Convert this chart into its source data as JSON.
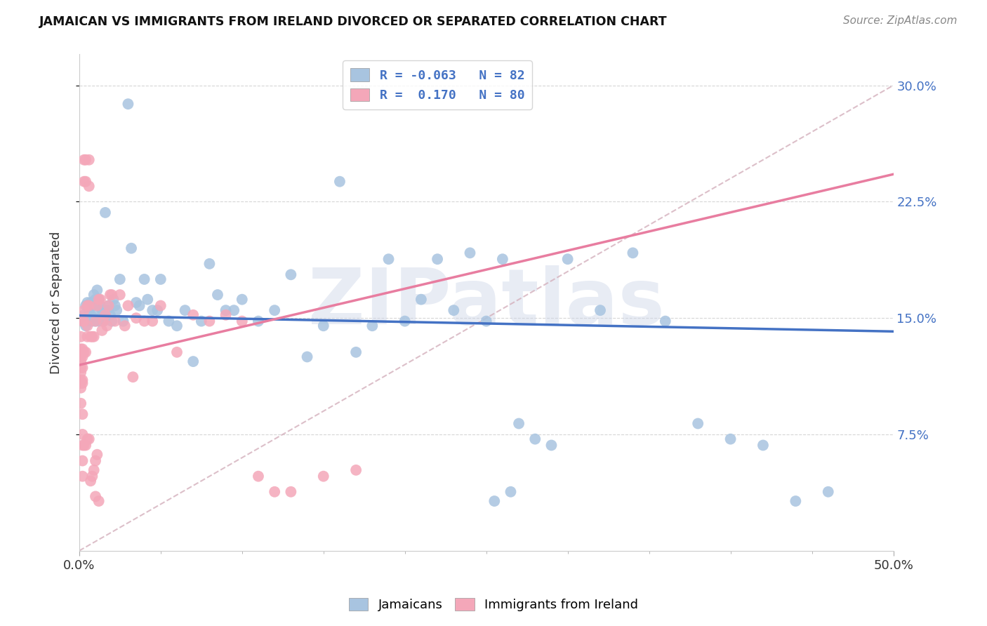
{
  "title": "JAMAICAN VS IMMIGRANTS FROM IRELAND DIVORCED OR SEPARATED CORRELATION CHART",
  "source": "Source: ZipAtlas.com",
  "ylabel": "Divorced or Separated",
  "ylabel_ticks": [
    "7.5%",
    "15.0%",
    "22.5%",
    "30.0%"
  ],
  "ylabel_vals": [
    0.075,
    0.15,
    0.225,
    0.3
  ],
  "xlim": [
    0.0,
    0.5
  ],
  "ylim": [
    0.0,
    0.32
  ],
  "jamaican_color": "#a8c4e0",
  "ireland_color": "#f4a7b9",
  "R_jamaican": -0.063,
  "N_jamaican": 82,
  "R_ireland": 0.17,
  "N_ireland": 80,
  "watermark": "ZIPatlas",
  "jamaican_points_x": [
    0.002,
    0.003,
    0.004,
    0.004,
    0.005,
    0.005,
    0.006,
    0.006,
    0.007,
    0.007,
    0.008,
    0.008,
    0.009,
    0.009,
    0.01,
    0.01,
    0.011,
    0.011,
    0.012,
    0.012,
    0.013,
    0.014,
    0.015,
    0.016,
    0.017,
    0.018,
    0.019,
    0.02,
    0.021,
    0.022,
    0.023,
    0.025,
    0.027,
    0.03,
    0.032,
    0.035,
    0.037,
    0.04,
    0.042,
    0.045,
    0.048,
    0.05,
    0.055,
    0.06,
    0.065,
    0.07,
    0.075,
    0.08,
    0.085,
    0.09,
    0.095,
    0.1,
    0.11,
    0.12,
    0.13,
    0.14,
    0.15,
    0.16,
    0.17,
    0.18,
    0.19,
    0.2,
    0.21,
    0.22,
    0.23,
    0.24,
    0.25,
    0.26,
    0.27,
    0.28,
    0.29,
    0.3,
    0.32,
    0.34,
    0.36,
    0.38,
    0.4,
    0.42,
    0.44,
    0.46,
    0.255,
    0.265
  ],
  "jamaican_points_y": [
    0.148,
    0.152,
    0.145,
    0.158,
    0.15,
    0.16,
    0.148,
    0.155,
    0.152,
    0.16,
    0.148,
    0.158,
    0.15,
    0.165,
    0.148,
    0.162,
    0.155,
    0.168,
    0.148,
    0.162,
    0.158,
    0.155,
    0.148,
    0.218,
    0.155,
    0.158,
    0.152,
    0.148,
    0.162,
    0.158,
    0.155,
    0.175,
    0.148,
    0.288,
    0.195,
    0.16,
    0.158,
    0.175,
    0.162,
    0.155,
    0.155,
    0.175,
    0.148,
    0.145,
    0.155,
    0.122,
    0.148,
    0.185,
    0.165,
    0.155,
    0.155,
    0.162,
    0.148,
    0.155,
    0.178,
    0.125,
    0.145,
    0.238,
    0.128,
    0.145,
    0.188,
    0.148,
    0.162,
    0.188,
    0.155,
    0.192,
    0.148,
    0.188,
    0.082,
    0.072,
    0.068,
    0.188,
    0.155,
    0.192,
    0.148,
    0.082,
    0.072,
    0.068,
    0.032,
    0.038,
    0.032,
    0.038
  ],
  "ireland_points_x": [
    0.001,
    0.001,
    0.001,
    0.001,
    0.001,
    0.001,
    0.001,
    0.001,
    0.001,
    0.001,
    0.001,
    0.002,
    0.002,
    0.002,
    0.002,
    0.002,
    0.002,
    0.002,
    0.002,
    0.002,
    0.002,
    0.002,
    0.003,
    0.003,
    0.003,
    0.003,
    0.003,
    0.003,
    0.004,
    0.004,
    0.004,
    0.004,
    0.005,
    0.005,
    0.005,
    0.005,
    0.006,
    0.006,
    0.006,
    0.006,
    0.007,
    0.007,
    0.008,
    0.008,
    0.009,
    0.009,
    0.01,
    0.01,
    0.011,
    0.011,
    0.012,
    0.013,
    0.014,
    0.015,
    0.016,
    0.017,
    0.018,
    0.019,
    0.02,
    0.022,
    0.025,
    0.028,
    0.03,
    0.033,
    0.035,
    0.04,
    0.045,
    0.05,
    0.06,
    0.07,
    0.08,
    0.09,
    0.1,
    0.11,
    0.12,
    0.13,
    0.15,
    0.17,
    0.01,
    0.012
  ],
  "ireland_points_y": [
    0.13,
    0.118,
    0.122,
    0.11,
    0.125,
    0.108,
    0.138,
    0.115,
    0.128,
    0.105,
    0.095,
    0.13,
    0.118,
    0.11,
    0.125,
    0.108,
    0.148,
    0.088,
    0.075,
    0.068,
    0.058,
    0.048,
    0.252,
    0.238,
    0.148,
    0.128,
    0.155,
    0.068,
    0.252,
    0.238,
    0.128,
    0.068,
    0.138,
    0.145,
    0.158,
    0.072,
    0.252,
    0.235,
    0.158,
    0.072,
    0.138,
    0.045,
    0.138,
    0.048,
    0.138,
    0.052,
    0.148,
    0.058,
    0.158,
    0.062,
    0.162,
    0.162,
    0.142,
    0.148,
    0.152,
    0.145,
    0.158,
    0.165,
    0.165,
    0.148,
    0.165,
    0.145,
    0.158,
    0.112,
    0.15,
    0.148,
    0.148,
    0.158,
    0.128,
    0.152,
    0.148,
    0.152,
    0.148,
    0.048,
    0.038,
    0.038,
    0.048,
    0.052,
    0.035,
    0.032
  ]
}
